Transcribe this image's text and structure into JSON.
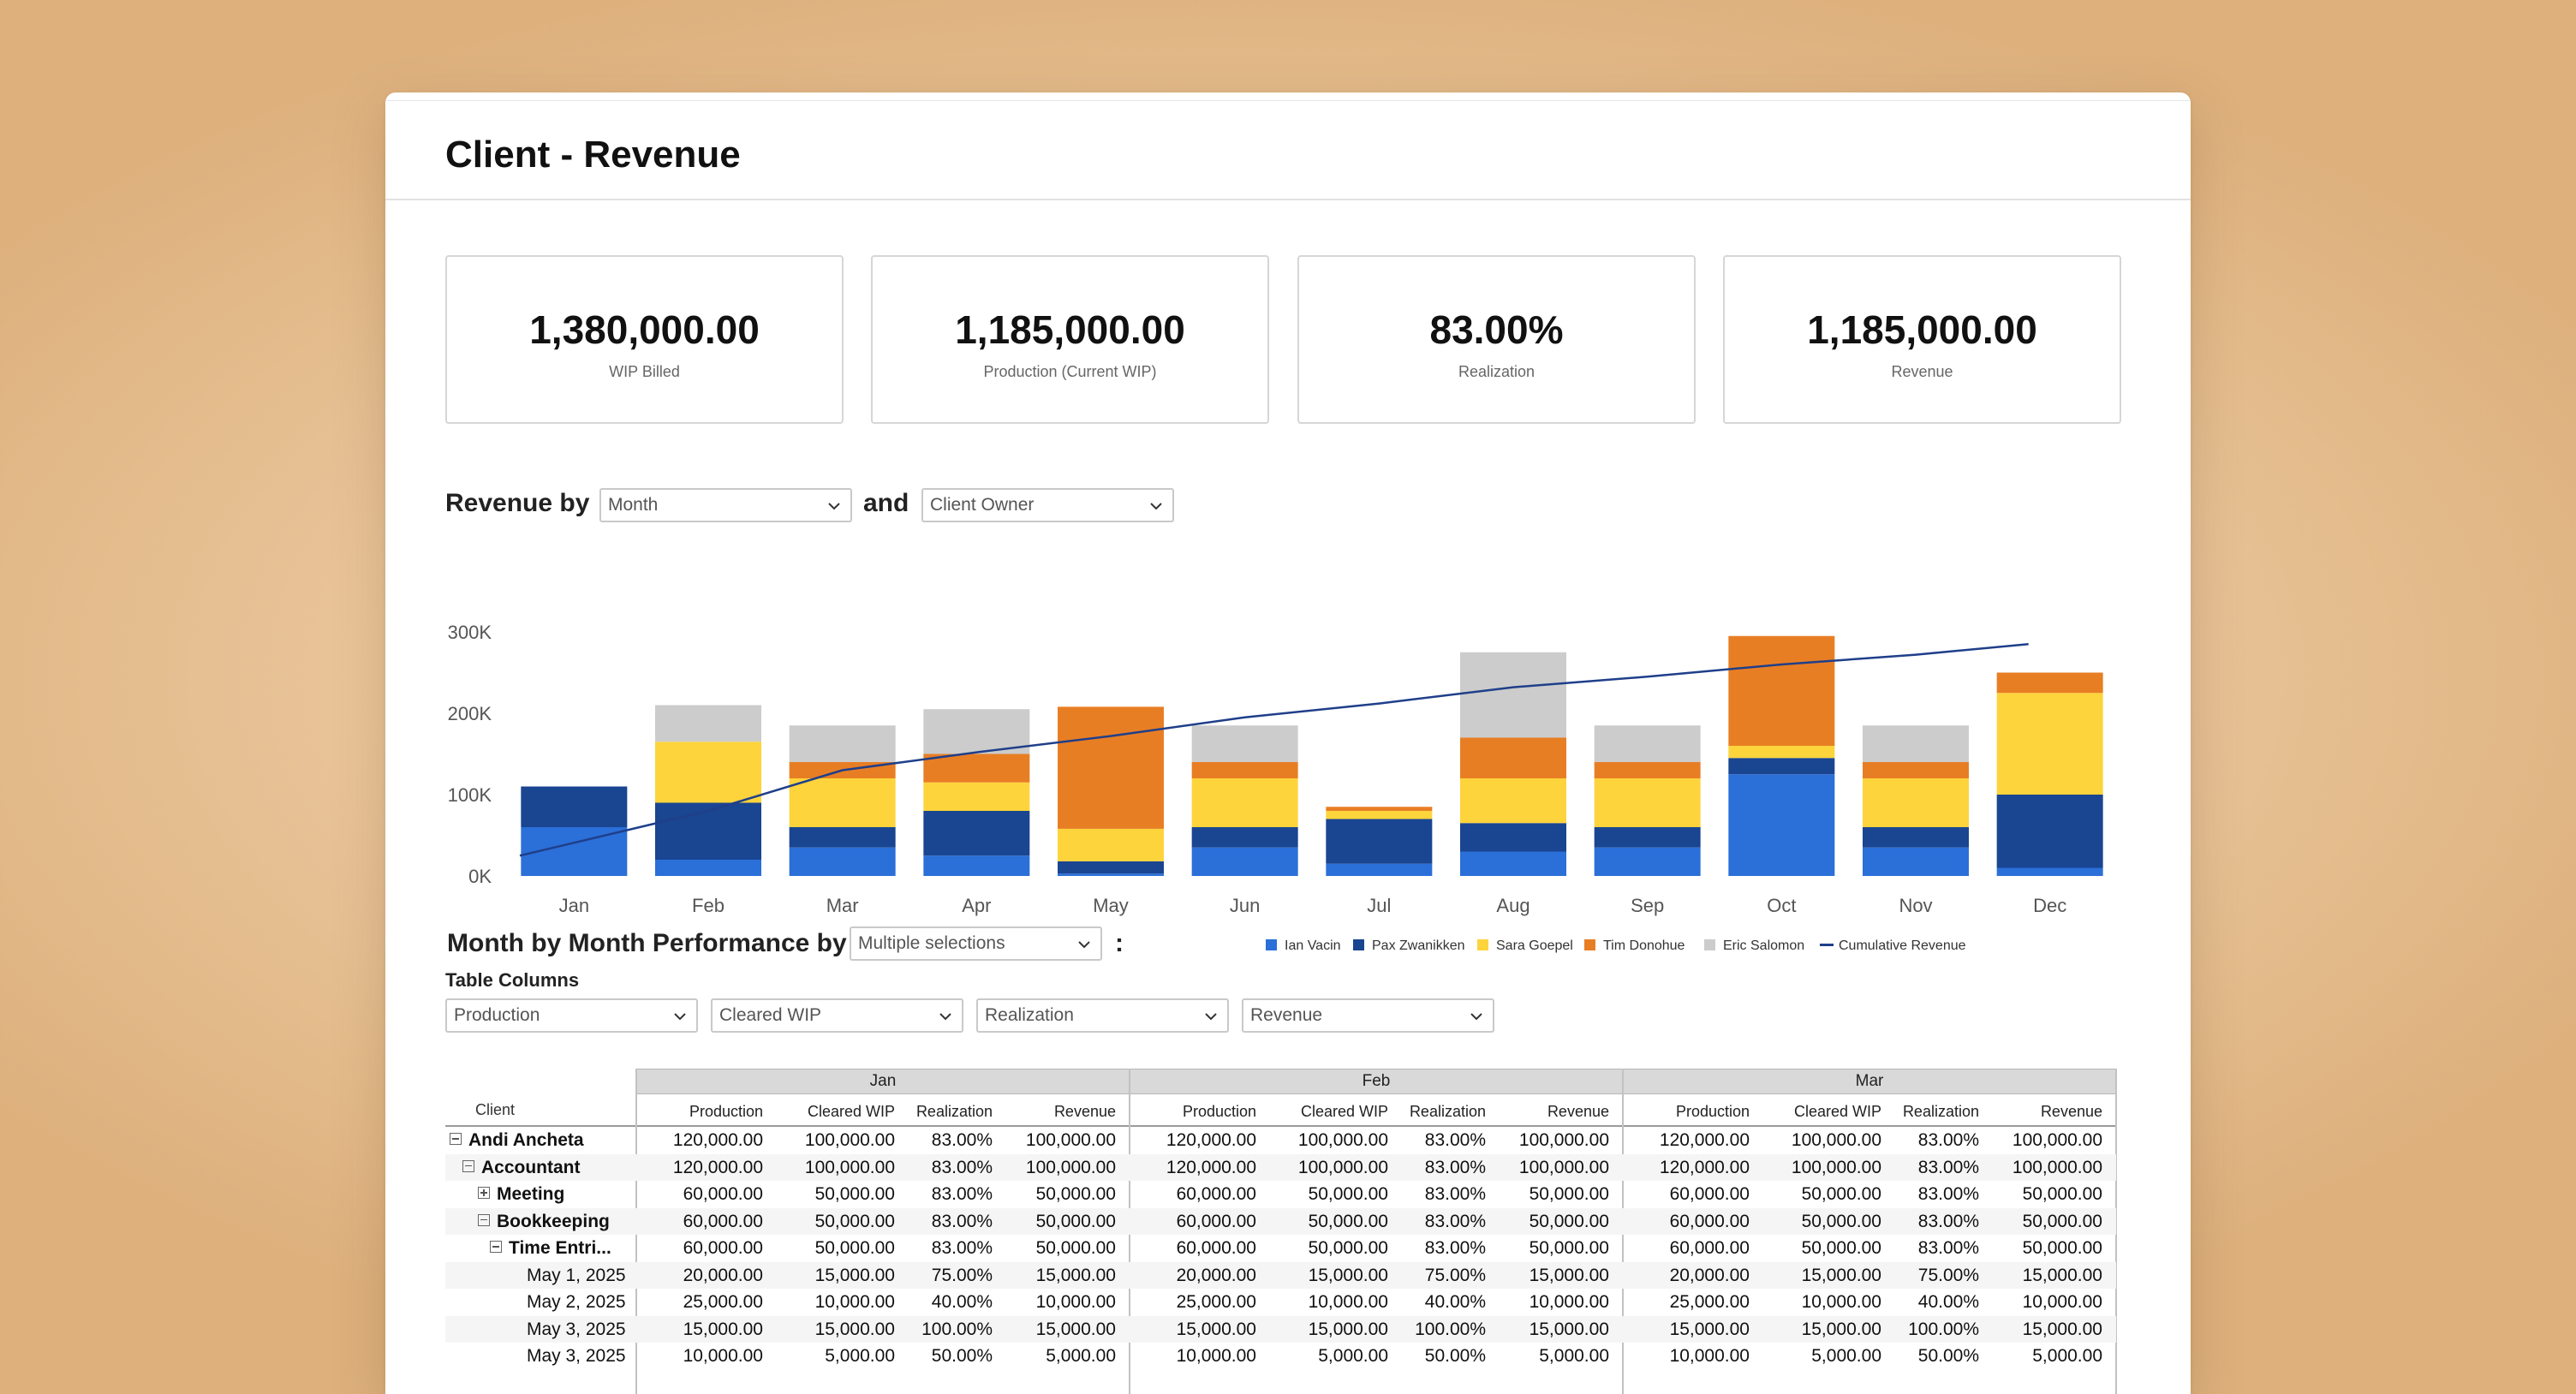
{
  "page": {
    "title": "Client - Revenue"
  },
  "kpis": [
    {
      "value": "1,380,000.00",
      "label": "WIP Billed"
    },
    {
      "value": "1,185,000.00",
      "label": "Production (Current WIP)"
    },
    {
      "value": "83.00%",
      "label": "Realization"
    },
    {
      "value": "1,185,000.00",
      "label": "Revenue"
    }
  ],
  "revenue_section": {
    "label": "Revenue by",
    "group_select": "Month",
    "and_label": "and",
    "split_select": "Client Owner"
  },
  "colors": {
    "ian": "#2b6fd8",
    "pax": "#1a4591",
    "sara": "#fdd43c",
    "tim": "#e87e24",
    "eric": "#cccccc",
    "cumulative": "#1f3f8a"
  },
  "chart_data": {
    "type": "bar",
    "stacked": true,
    "categories": [
      "Jan",
      "Feb",
      "Mar",
      "Apr",
      "May",
      "Jun",
      "Jul",
      "Aug",
      "Sep",
      "Oct",
      "Nov",
      "Dec"
    ],
    "y_ticks": [
      "0K",
      "100K",
      "200K",
      "300K"
    ],
    "ylim": [
      0,
      300000
    ],
    "series": [
      {
        "name": "Ian Vacin",
        "color_key": "ian",
        "values": [
          60000,
          20000,
          35000,
          25000,
          3000,
          35000,
          15000,
          30000,
          35000,
          125000,
          35000,
          10000
        ]
      },
      {
        "name": "Pax Zwanikken",
        "color_key": "pax",
        "values": [
          50000,
          70000,
          25000,
          55000,
          15000,
          25000,
          55000,
          35000,
          25000,
          20000,
          25000,
          90000
        ]
      },
      {
        "name": "Sara Goepel",
        "color_key": "sara",
        "values": [
          0,
          75000,
          60000,
          35000,
          40000,
          60000,
          10000,
          55000,
          60000,
          15000,
          60000,
          125000
        ]
      },
      {
        "name": "Tim Donohue",
        "color_key": "tim",
        "values": [
          0,
          0,
          20000,
          35000,
          150000,
          20000,
          5000,
          50000,
          20000,
          135000,
          20000,
          25000
        ]
      },
      {
        "name": "Eric Salomon",
        "color_key": "eric",
        "values": [
          0,
          45000,
          45000,
          55000,
          0,
          45000,
          0,
          105000,
          45000,
          0,
          45000,
          0
        ]
      }
    ],
    "line": {
      "name": "Cumulative Revenue",
      "color_key": "cumulative",
      "values": [
        25000,
        80000,
        130000,
        152000,
        172000,
        195000,
        212000,
        232000,
        245000,
        260000,
        272000,
        285000
      ]
    },
    "legend_position": "bottom",
    "grid": false
  },
  "performance_section": {
    "label": "Month by Month Performance by",
    "select": "Multiple selections",
    "colon": ":",
    "table_columns_label": "Table Columns",
    "column_selects": [
      "Production",
      "Cleared WIP",
      "Realization",
      "Revenue"
    ]
  },
  "table": {
    "client_header": "Client",
    "months": [
      "Jan",
      "Feb",
      "Mar"
    ],
    "sub_headers": [
      "Production",
      "Cleared WIP",
      "Realization",
      "Revenue"
    ],
    "rows": [
      {
        "name": "Andi Ancheta",
        "values": [
          "120,000.00",
          "100,000.00",
          "83.00%",
          "100,000.00"
        ]
      },
      {
        "name": "Accountant",
        "values": [
          "120,000.00",
          "100,000.00",
          "83.00%",
          "100,000.00"
        ]
      },
      {
        "name": "Meeting",
        "values": [
          "60,000.00",
          "50,000.00",
          "83.00%",
          "50,000.00"
        ]
      },
      {
        "name": "Bookkeeping",
        "values": [
          "60,000.00",
          "50,000.00",
          "83.00%",
          "50,000.00"
        ]
      },
      {
        "name": "Time Entri...",
        "values": [
          "60,000.00",
          "50,000.00",
          "83.00%",
          "50,000.00"
        ]
      },
      {
        "name": "May 1, 2025",
        "values": [
          "20,000.00",
          "15,000.00",
          "75.00%",
          "15,000.00"
        ]
      },
      {
        "name": "May 2, 2025",
        "values": [
          "25,000.00",
          "10,000.00",
          "40.00%",
          "10,000.00"
        ]
      },
      {
        "name": "May 3, 2025",
        "values": [
          "15,000.00",
          "15,000.00",
          "100.00%",
          "15,000.00"
        ]
      },
      {
        "name": "May 3, 2025",
        "values": [
          "10,000.00",
          "5,000.00",
          "50.00%",
          "5,000.00"
        ]
      }
    ]
  }
}
